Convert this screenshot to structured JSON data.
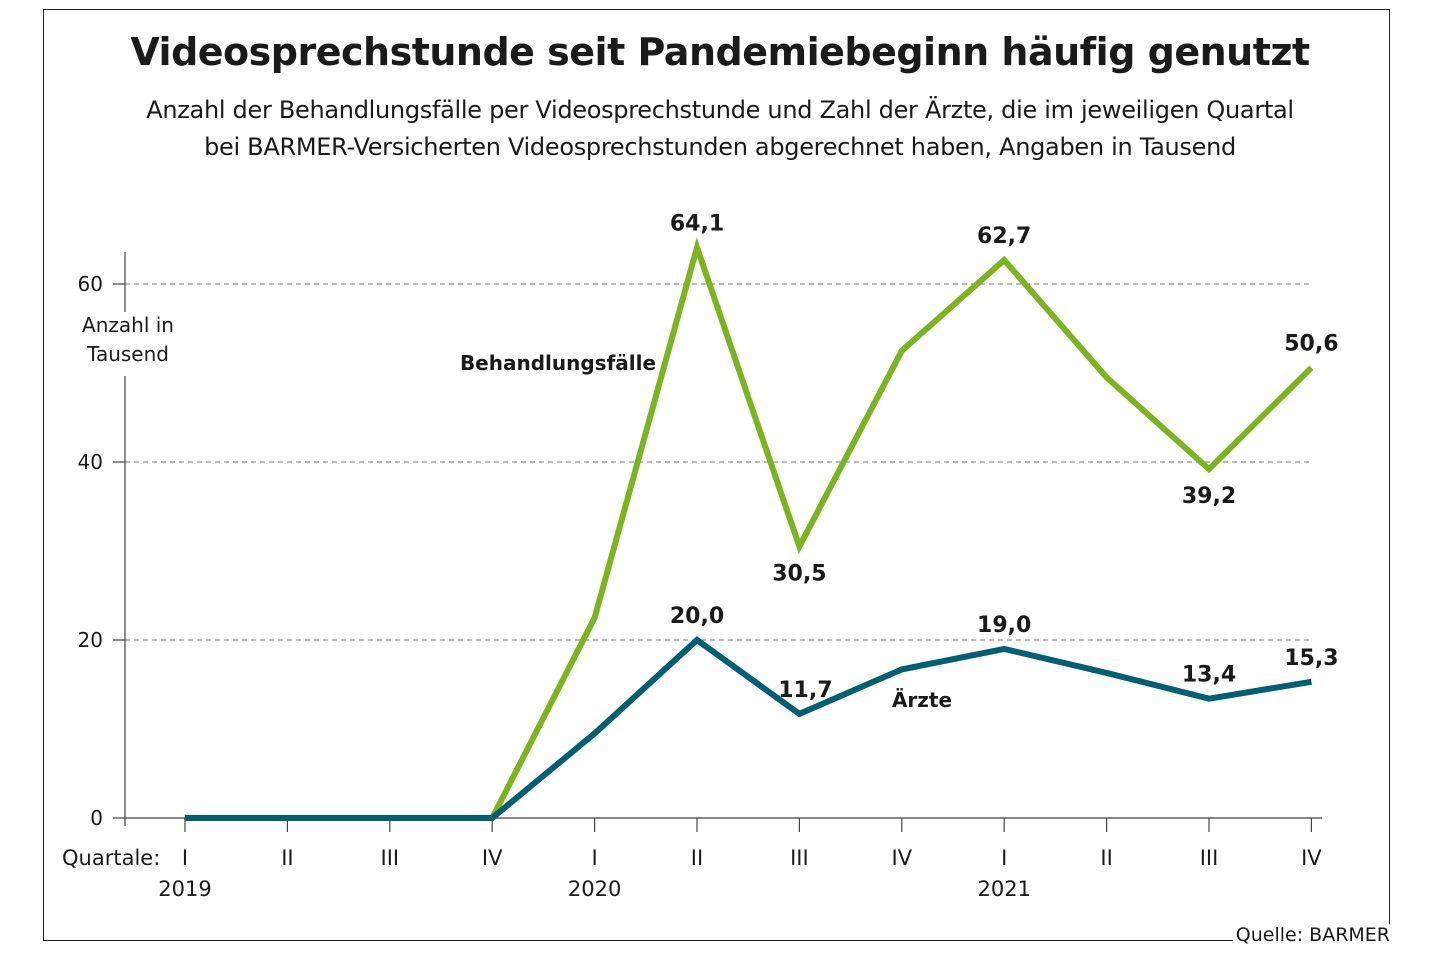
{
  "title": "Videosprechstunde seit Pandemiebeginn häufig genutzt",
  "subtitle_line1": "Anzahl der Behandlungsfälle per Videosprechstunde und Zahl der Ärzte, die im jeweiligen Quartal",
  "subtitle_line2": "bei BARMER-Versicherten Videosprechstunden abgerechnet haben, Angaben in Tausend",
  "source": "Quelle: BARMER",
  "chart_data": {
    "type": "line",
    "title": "Videosprechstunde seit Pandemiebeginn häufig genutzt",
    "ylabel_lines": [
      "Anzahl in",
      "Tausend"
    ],
    "xlabel": "Quartale:",
    "ylim": [
      0,
      64.1
    ],
    "yticks": [
      0,
      20,
      40,
      60
    ],
    "yticks_labels": [
      "0",
      "20",
      "40",
      "60"
    ],
    "grid": "dashed horizontal at 20, 40, 60",
    "categories": [
      "I",
      "II",
      "III",
      "IV",
      "I",
      "II",
      "III",
      "IV",
      "I",
      "II",
      "III",
      "IV"
    ],
    "years": [
      {
        "label": "2019",
        "index": 0
      },
      {
        "label": "2020",
        "index": 4
      },
      {
        "label": "2021",
        "index": 8
      }
    ],
    "series": [
      {
        "name": "Behandlungsfälle",
        "color": "#7ab51d",
        "values": [
          0,
          0,
          0,
          0,
          22.5,
          64.1,
          30.5,
          52.5,
          62.7,
          49.5,
          39.2,
          50.6
        ],
        "labels": [
          {
            "index": 5,
            "text": "64,1",
            "position": "above"
          },
          {
            "index": 6,
            "text": "30,5",
            "position": "below"
          },
          {
            "index": 8,
            "text": "62,7",
            "position": "above"
          },
          {
            "index": 10,
            "text": "39,2",
            "position": "below"
          },
          {
            "index": 11,
            "text": "50,6",
            "position": "above"
          }
        ]
      },
      {
        "name": "Ärzte",
        "color": "#005f73",
        "values": [
          0,
          0,
          0,
          0,
          9.5,
          20.0,
          11.7,
          16.7,
          19.0,
          16.3,
          13.4,
          15.3
        ],
        "labels": [
          {
            "index": 5,
            "text": "20,0",
            "position": "above"
          },
          {
            "index": 6,
            "text": "11,7",
            "position": "above"
          },
          {
            "index": 8,
            "text": "19,0",
            "position": "above"
          },
          {
            "index": 10,
            "text": "13,4",
            "position": "above"
          },
          {
            "index": 11,
            "text": "15,3",
            "position": "above"
          }
        ]
      }
    ]
  }
}
